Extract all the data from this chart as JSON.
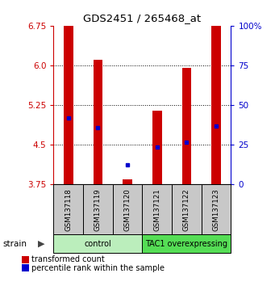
{
  "title": "GDS2451 / 265468_at",
  "samples": [
    "GSM137118",
    "GSM137119",
    "GSM137120",
    "GSM137121",
    "GSM137122",
    "GSM137123"
  ],
  "red_top": [
    6.75,
    6.1,
    3.85,
    5.15,
    5.95,
    6.75
  ],
  "red_bottom": [
    3.75,
    3.75,
    3.75,
    3.75,
    3.75,
    3.75
  ],
  "blue_y": [
    5.0,
    4.82,
    4.12,
    4.45,
    4.55,
    4.85
  ],
  "ylim": [
    3.75,
    6.75
  ],
  "yticks_left": [
    3.75,
    4.5,
    5.25,
    6.0,
    6.75
  ],
  "yticks_right_vals": [
    "0",
    "25",
    "50",
    "75",
    "100%"
  ],
  "yticks_right_pos": [
    3.75,
    4.5,
    5.25,
    6.0,
    6.75
  ],
  "group_colors": [
    "#bbeebc",
    "#55dd55"
  ],
  "red_color": "#cc0000",
  "blue_color": "#0000cc",
  "legend_red": "transformed count",
  "legend_blue": "percentile rank within the sample",
  "bg_color": "#ffffff",
  "sample_box_color": "#c8c8c8"
}
